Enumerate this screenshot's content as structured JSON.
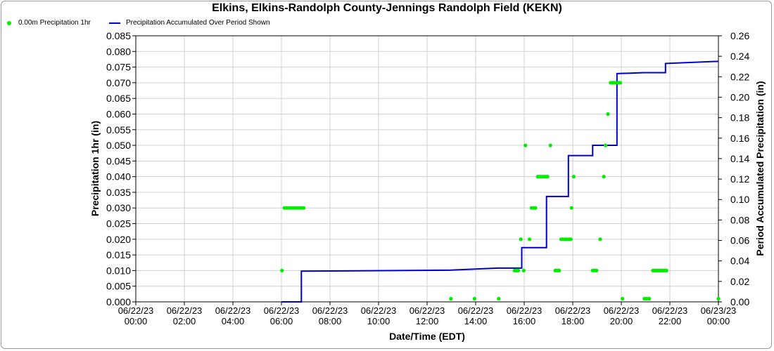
{
  "chart_data": {
    "type": "scatter",
    "title": "Elkins, Elkins-Randolph County-Jennings Randolph Field (KEKN)",
    "xlabel": "Date/Time (EDT)",
    "ylabel": "Precipitation 1hr (in)",
    "ylabel_right": "Period Accumulated Precipitation (in)",
    "grid": true,
    "legend_position": "top-left",
    "x_range_hours": [
      0,
      24
    ],
    "x_ticks": [
      {
        "date": "06/22/23",
        "time": "00:00",
        "h": 0
      },
      {
        "date": "06/22/23",
        "time": "02:00",
        "h": 2
      },
      {
        "date": "06/22/23",
        "time": "04:00",
        "h": 4
      },
      {
        "date": "06/22/23",
        "time": "06:00",
        "h": 6
      },
      {
        "date": "06/22/23",
        "time": "08:00",
        "h": 8
      },
      {
        "date": "06/22/23",
        "time": "10:00",
        "h": 10
      },
      {
        "date": "06/22/23",
        "time": "12:00",
        "h": 12
      },
      {
        "date": "06/22/23",
        "time": "14:00",
        "h": 14
      },
      {
        "date": "06/22/23",
        "time": "16:00",
        "h": 16
      },
      {
        "date": "06/22/23",
        "time": "18:00",
        "h": 18
      },
      {
        "date": "06/22/23",
        "time": "20:00",
        "h": 20
      },
      {
        "date": "06/22/23",
        "time": "22:00",
        "h": 22
      },
      {
        "date": "06/23/23",
        "time": "00:00",
        "h": 24
      }
    ],
    "ylim_left": [
      0,
      0.085
    ],
    "left_ticks": [
      "0.000",
      "0.005",
      "0.010",
      "0.015",
      "0.020",
      "0.025",
      "0.030",
      "0.035",
      "0.040",
      "0.045",
      "0.050",
      "0.055",
      "0.060",
      "0.065",
      "0.070",
      "0.075",
      "0.080",
      "0.085"
    ],
    "ylim_right": [
      0,
      0.26
    ],
    "right_ticks": [
      "0.00",
      "0.02",
      "0.04",
      "0.06",
      "0.08",
      "0.10",
      "0.12",
      "0.14",
      "0.16",
      "0.18",
      "0.20",
      "0.22",
      "0.24",
      "0.26"
    ],
    "series": [
      {
        "name": "0.00m Precipitation 1hr",
        "color": "#00ee00",
        "points": [
          [
            6.02,
            0.01
          ],
          [
            6.12,
            0.03
          ],
          [
            6.2,
            0.03
          ],
          [
            6.28,
            0.03
          ],
          [
            6.36,
            0.03
          ],
          [
            6.44,
            0.03
          ],
          [
            6.52,
            0.03
          ],
          [
            6.6,
            0.03
          ],
          [
            6.68,
            0.03
          ],
          [
            6.76,
            0.03
          ],
          [
            6.84,
            0.03
          ],
          [
            6.92,
            0.03
          ],
          [
            12.98,
            0.001
          ],
          [
            13.95,
            0.001
          ],
          [
            14.95,
            0.001
          ],
          [
            15.6,
            0.01
          ],
          [
            15.68,
            0.01
          ],
          [
            15.76,
            0.01
          ],
          [
            15.86,
            0.02
          ],
          [
            15.98,
            0.01
          ],
          [
            16.05,
            0.05
          ],
          [
            16.22,
            0.02
          ],
          [
            16.3,
            0.03
          ],
          [
            16.38,
            0.03
          ],
          [
            16.46,
            0.03
          ],
          [
            16.56,
            0.04
          ],
          [
            16.64,
            0.04
          ],
          [
            16.72,
            0.04
          ],
          [
            16.8,
            0.04
          ],
          [
            16.88,
            0.04
          ],
          [
            16.96,
            0.04
          ],
          [
            17.08,
            0.05
          ],
          [
            17.28,
            0.01
          ],
          [
            17.36,
            0.01
          ],
          [
            17.44,
            0.01
          ],
          [
            17.52,
            0.02
          ],
          [
            17.6,
            0.02
          ],
          [
            17.68,
            0.02
          ],
          [
            17.76,
            0.02
          ],
          [
            17.84,
            0.02
          ],
          [
            17.92,
            0.02
          ],
          [
            17.95,
            0.03
          ],
          [
            18.04,
            0.04
          ],
          [
            18.82,
            0.01
          ],
          [
            18.9,
            0.01
          ],
          [
            18.98,
            0.01
          ],
          [
            19.13,
            0.02
          ],
          [
            19.28,
            0.04
          ],
          [
            19.35,
            0.05
          ],
          [
            19.45,
            0.06
          ],
          [
            19.56,
            0.07
          ],
          [
            19.64,
            0.07
          ],
          [
            19.72,
            0.07
          ],
          [
            19.8,
            0.07
          ],
          [
            19.88,
            0.07
          ],
          [
            19.96,
            0.07
          ],
          [
            20.05,
            0.001
          ],
          [
            20.95,
            0.001
          ],
          [
            21.05,
            0.001
          ],
          [
            21.15,
            0.001
          ],
          [
            21.3,
            0.01
          ],
          [
            21.38,
            0.01
          ],
          [
            21.46,
            0.01
          ],
          [
            21.54,
            0.01
          ],
          [
            21.62,
            0.01
          ],
          [
            21.7,
            0.01
          ],
          [
            21.78,
            0.01
          ],
          [
            21.86,
            0.01
          ],
          [
            24.0,
            0.001
          ]
        ]
      },
      {
        "name": "Precipitation Accumulated Over Period Shown",
        "color": "#0000cc",
        "points": [
          [
            6.0,
            0.0
          ],
          [
            6.82,
            0.0
          ],
          [
            6.82,
            0.03
          ],
          [
            13.0,
            0.031
          ],
          [
            14.9,
            0.033
          ],
          [
            15.9,
            0.033
          ],
          [
            15.9,
            0.053
          ],
          [
            16.92,
            0.053
          ],
          [
            16.92,
            0.103
          ],
          [
            17.82,
            0.103
          ],
          [
            17.82,
            0.143
          ],
          [
            18.82,
            0.143
          ],
          [
            18.82,
            0.153
          ],
          [
            19.82,
            0.153
          ],
          [
            19.82,
            0.223
          ],
          [
            20.92,
            0.224
          ],
          [
            21.82,
            0.224
          ],
          [
            21.82,
            0.233
          ],
          [
            24.0,
            0.235
          ]
        ]
      }
    ]
  }
}
